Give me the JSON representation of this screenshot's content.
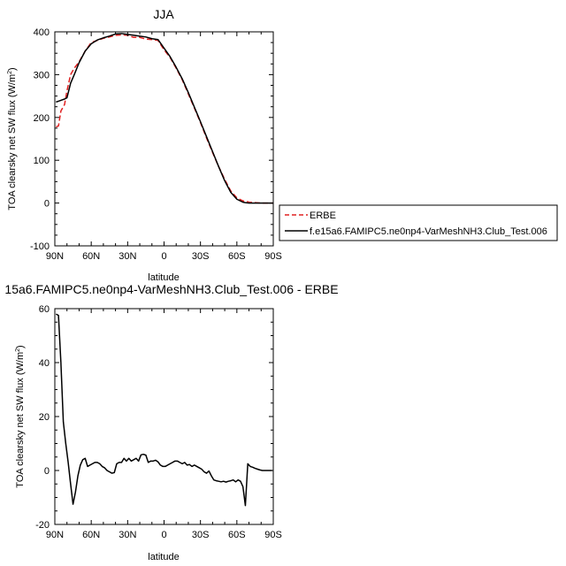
{
  "chart_data": [
    {
      "type": "line",
      "title": "JJA",
      "xlabel": "latitude",
      "ylabel": "TOA clearsky net SW flux (W/m",
      "ylabel_superscript": "2",
      "ylabel_suffix": ")",
      "xlim": [
        90,
        -90
      ],
      "ylim": [
        -100,
        400
      ],
      "x_ticks": [
        90,
        60,
        30,
        0,
        -30,
        -60,
        -90
      ],
      "x_tick_labels": [
        "90N",
        "60N",
        "30N",
        "0",
        "30S",
        "60S",
        "90S"
      ],
      "y_ticks": [
        -100,
        0,
        100,
        200,
        300,
        400
      ],
      "y_tick_labels": [
        "-100",
        "0",
        "100",
        "200",
        "300",
        "400"
      ],
      "legend": "right",
      "series": [
        {
          "name": "ERBE",
          "color": "#e02020",
          "dash": "dashed",
          "x": [
            89,
            87,
            85,
            82,
            80,
            77,
            74,
            70,
            65,
            60,
            55,
            50,
            45,
            40,
            35,
            30,
            25,
            20,
            15,
            10,
            5,
            0,
            -5,
            -10,
            -15,
            -20,
            -25,
            -30,
            -35,
            -40,
            -45,
            -50,
            -55,
            -60,
            -65,
            -68,
            -70,
            -75,
            -80,
            -85,
            -90
          ],
          "y": [
            178,
            180,
            215,
            230,
            262,
            300,
            315,
            330,
            355,
            375,
            380,
            385,
            388,
            392,
            393,
            392,
            387,
            387,
            383,
            382,
            380,
            358,
            340,
            315,
            288,
            255,
            222,
            188,
            152,
            118,
            85,
            55,
            28,
            12,
            5,
            4,
            2,
            1,
            0,
            0,
            0
          ]
        },
        {
          "name": "f.e15a6.FAMIPC5.ne0np4-VarMeshNH3.Club_Test.006",
          "color": "#000000",
          "dash": "solid",
          "x": [
            89,
            87,
            85,
            82,
            80,
            77,
            74,
            70,
            65,
            60,
            55,
            50,
            45,
            40,
            35,
            30,
            25,
            20,
            15,
            10,
            5,
            0,
            -5,
            -10,
            -15,
            -20,
            -25,
            -30,
            -35,
            -40,
            -45,
            -50,
            -55,
            -60,
            -65,
            -67,
            -70,
            -75,
            -80,
            -85,
            -90
          ],
          "y": [
            236,
            238,
            240,
            243,
            246,
            280,
            300,
            328,
            355,
            372,
            381,
            386,
            390,
            395,
            396,
            394,
            392,
            390,
            388,
            384,
            382,
            362,
            342,
            317,
            290,
            258,
            224,
            190,
            155,
            120,
            85,
            52,
            25,
            9,
            2,
            1,
            0,
            0,
            0,
            0,
            0
          ]
        }
      ]
    },
    {
      "type": "line",
      "title": "15a6.FAMIPC5.ne0np4-VarMeshNH3.Club_Test.006 - ERBE",
      "xlabel": "latitude",
      "ylabel": "TOA clearsky net SW flux (W/m",
      "ylabel_superscript": "2",
      "ylabel_suffix": ")",
      "xlim": [
        90,
        -90
      ],
      "ylim": [
        -20,
        60
      ],
      "x_ticks": [
        90,
        60,
        30,
        0,
        -30,
        -60,
        -90
      ],
      "x_tick_labels": [
        "90N",
        "60N",
        "30N",
        "0",
        "30S",
        "60S",
        "90S"
      ],
      "y_ticks": [
        -20,
        0,
        20,
        40,
        60
      ],
      "y_tick_labels": [
        "-20",
        "0",
        "20",
        "40",
        "60"
      ],
      "series": [
        {
          "color": "#000000",
          "dash": "solid",
          "x": [
            89,
            87,
            85,
            83,
            81,
            79,
            77,
            75,
            73,
            71,
            69,
            67,
            65,
            63,
            61,
            59,
            57,
            55,
            53,
            51,
            49,
            47,
            45,
            43,
            41,
            39,
            37,
            35,
            33,
            31,
            29,
            27,
            25,
            23,
            21,
            19,
            17,
            15,
            13,
            11,
            9,
            7,
            5,
            3,
            1,
            -1,
            -3,
            -5,
            -7,
            -9,
            -11,
            -13,
            -15,
            -17,
            -19,
            -21,
            -23,
            -25,
            -27,
            -29,
            -31,
            -33,
            -35,
            -37,
            -39,
            -41,
            -43,
            -45,
            -47,
            -49,
            -51,
            -53,
            -55,
            -57,
            -59,
            -61,
            -63,
            -65,
            -67,
            -69,
            -71,
            -73,
            -75,
            -77,
            -79,
            -81,
            -83,
            -85,
            -87,
            -89
          ],
          "y": [
            58,
            57.5,
            40,
            18,
            10,
            3,
            -5,
            -12.5,
            -8,
            -2,
            2,
            4,
            4.5,
            1.5,
            2,
            2.5,
            3,
            3,
            2.5,
            1.5,
            1,
            0,
            -0.5,
            -1,
            -0.8,
            2.5,
            3,
            3,
            4.5,
            3.5,
            4.5,
            3.5,
            4,
            4.5,
            3.5,
            5.8,
            6,
            5.7,
            3,
            3.5,
            3.5,
            3.8,
            3.2,
            2,
            1.5,
            1.5,
            2,
            2.5,
            3,
            3.5,
            3.5,
            3,
            2.5,
            3,
            2,
            2.2,
            1.5,
            2,
            1.5,
            1,
            0.5,
            -0.5,
            -1,
            -0.2,
            -2,
            -3.5,
            -3.8,
            -4,
            -4.2,
            -4,
            -4.3,
            -4,
            -3.8,
            -3.5,
            -4.2,
            -3.5,
            -4,
            -6,
            -13,
            2.5,
            1.5,
            1.2,
            0.8,
            0.5,
            0.2,
            0,
            0,
            0,
            0,
            0
          ]
        }
      ]
    }
  ]
}
